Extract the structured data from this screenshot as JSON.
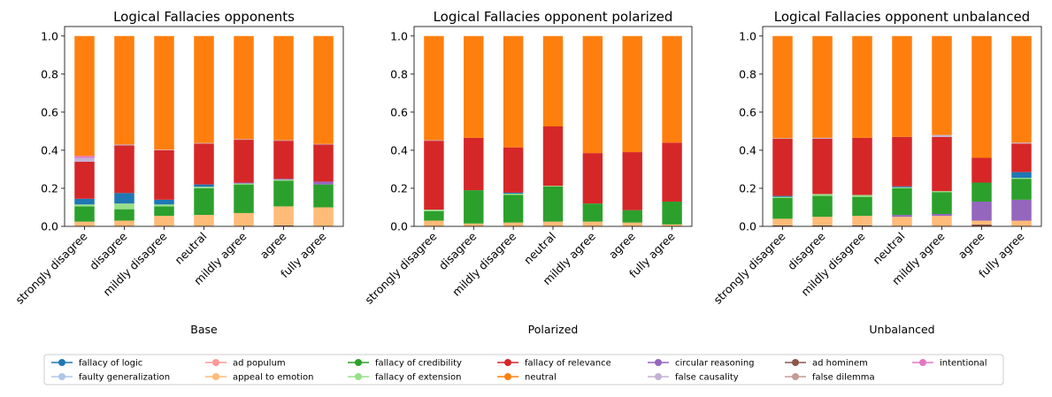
{
  "categories": [
    "strongly disagree",
    "disagree",
    "mildly disagree",
    "neutral",
    "mildly agree",
    "agree",
    "fully agree"
  ],
  "legend": [
    {
      "key": "fallacy_of_logic",
      "label": "fallacy of logic",
      "color": "#1f77b4"
    },
    {
      "key": "faulty_generalization",
      "label": "faulty generalization",
      "color": "#aec7e8"
    },
    {
      "key": "ad_populum",
      "label": "ad populum",
      "color": "#ff9896"
    },
    {
      "key": "appeal_to_emotion",
      "label": "appeal to emotion",
      "color": "#ffbb78"
    },
    {
      "key": "fallacy_of_credibility",
      "label": "fallacy of credibility",
      "color": "#2ca02c"
    },
    {
      "key": "fallacy_of_extension",
      "label": "fallacy of extension",
      "color": "#98df8a"
    },
    {
      "key": "fallacy_of_relevance",
      "label": "fallacy of relevance",
      "color": "#d62728"
    },
    {
      "key": "neutral",
      "label": "neutral",
      "color": "#ff7f0e"
    },
    {
      "key": "circular_reasoning",
      "label": "circular reasoning",
      "color": "#9467bd"
    },
    {
      "key": "false_causality",
      "label": "false causality",
      "color": "#c5b0d5"
    },
    {
      "key": "ad_hominem",
      "label": "ad hominem",
      "color": "#8c564b"
    },
    {
      "key": "false_dilemma",
      "label": "false dilemma",
      "color": "#c49c94"
    },
    {
      "key": "intentional",
      "label": "intentional",
      "color": "#e377c2"
    }
  ],
  "chart_data": [
    {
      "type": "bar",
      "stacked": true,
      "title": "Logical Fallacies opponents",
      "xlabel": "Base",
      "ylabel": "",
      "ylim": [
        0,
        1.05
      ],
      "yticks": [
        "0.0",
        "0.2",
        "0.4",
        "0.6",
        "0.8",
        "1.0"
      ],
      "stack_order": [
        "ad_hominem",
        "appeal_to_emotion",
        "fallacy_of_credibility",
        "fallacy_of_extension",
        "circular_reasoning",
        "fallacy_of_logic",
        "fallacy_of_relevance",
        "false_causality",
        "intentional",
        "neutral"
      ],
      "series": {
        "ad_hominem": [
          0.0,
          0.0,
          0.0,
          0.0,
          0.0,
          0.005,
          0.0
        ],
        "appeal_to_emotion": [
          0.025,
          0.03,
          0.055,
          0.06,
          0.07,
          0.1,
          0.1
        ],
        "fallacy_of_credibility": [
          0.08,
          0.06,
          0.05,
          0.14,
          0.15,
          0.135,
          0.12
        ],
        "fallacy_of_extension": [
          0.01,
          0.03,
          0.01,
          0.008,
          0.005,
          0.005,
          0.0
        ],
        "circular_reasoning": [
          0.0,
          0.0,
          0.0,
          0.0,
          0.005,
          0.005,
          0.015
        ],
        "fallacy_of_logic": [
          0.03,
          0.055,
          0.025,
          0.012,
          0.0,
          0.0,
          0.0
        ],
        "fallacy_of_relevance": [
          0.195,
          0.25,
          0.26,
          0.215,
          0.225,
          0.2,
          0.195
        ],
        "false_causality": [
          0.02,
          0.005,
          0.003,
          0.003,
          0.003,
          0.003,
          0.003
        ],
        "intentional": [
          0.01,
          0.0,
          0.0,
          0.0,
          0.0,
          0.0,
          0.0
        ],
        "neutral": [
          0.63,
          0.57,
          0.597,
          0.562,
          0.542,
          0.547,
          0.567
        ]
      }
    },
    {
      "type": "bar",
      "stacked": true,
      "title": "Logical Fallacies opponent polarized",
      "xlabel": "Polarized",
      "ylabel": "",
      "ylim": [
        0,
        1.05
      ],
      "yticks": [
        "0.0",
        "0.2",
        "0.4",
        "0.6",
        "0.8",
        "1.0"
      ],
      "stack_order": [
        "appeal_to_emotion",
        "fallacy_of_credibility",
        "fallacy_of_extension",
        "fallacy_of_logic",
        "fallacy_of_relevance",
        "false_causality",
        "neutral"
      ],
      "series": {
        "appeal_to_emotion": [
          0.03,
          0.015,
          0.02,
          0.025,
          0.025,
          0.02,
          0.01
        ],
        "fallacy_of_credibility": [
          0.05,
          0.175,
          0.145,
          0.185,
          0.095,
          0.065,
          0.12
        ],
        "fallacy_of_extension": [
          0.008,
          0.0,
          0.007,
          0.003,
          0.0,
          0.0,
          0.0
        ],
        "fallacy_of_logic": [
          0.0,
          0.0,
          0.005,
          0.0,
          0.0,
          0.0,
          0.0
        ],
        "fallacy_of_relevance": [
          0.362,
          0.275,
          0.238,
          0.312,
          0.265,
          0.305,
          0.31
        ],
        "false_causality": [
          0.003,
          0.0,
          0.0,
          0.0,
          0.0,
          0.0,
          0.0
        ],
        "neutral": [
          0.547,
          0.535,
          0.585,
          0.475,
          0.615,
          0.61,
          0.56
        ]
      }
    },
    {
      "type": "bar",
      "stacked": true,
      "title": "Logical Fallacies opponent unbalanced",
      "xlabel": "Unbalanced",
      "ylabel": "",
      "ylim": [
        0,
        1.05
      ],
      "yticks": [
        "0.0",
        "0.2",
        "0.4",
        "0.6",
        "0.8",
        "1.0"
      ],
      "stack_order": [
        "ad_hominem",
        "appeal_to_emotion",
        "circular_reasoning",
        "fallacy_of_credibility",
        "fallacy_of_extension",
        "fallacy_of_logic",
        "fallacy_of_relevance",
        "false_causality",
        "neutral"
      ],
      "series": {
        "ad_hominem": [
          0.005,
          0.005,
          0.005,
          0.0,
          0.0,
          0.01,
          0.0
        ],
        "appeal_to_emotion": [
          0.035,
          0.045,
          0.05,
          0.05,
          0.055,
          0.02,
          0.03
        ],
        "circular_reasoning": [
          0.0,
          0.0,
          0.0,
          0.01,
          0.01,
          0.1,
          0.11
        ],
        "fallacy_of_credibility": [
          0.11,
          0.11,
          0.1,
          0.14,
          0.115,
          0.1,
          0.11
        ],
        "fallacy_of_extension": [
          0.005,
          0.01,
          0.01,
          0.005,
          0.005,
          0.0,
          0.005
        ],
        "fallacy_of_logic": [
          0.005,
          0.0,
          0.0,
          0.005,
          0.0,
          0.0,
          0.03
        ],
        "fallacy_of_relevance": [
          0.3,
          0.29,
          0.3,
          0.26,
          0.285,
          0.13,
          0.15
        ],
        "false_causality": [
          0.003,
          0.005,
          0.0,
          0.0,
          0.01,
          0.0,
          0.005
        ],
        "neutral": [
          0.537,
          0.535,
          0.535,
          0.53,
          0.52,
          0.64,
          0.56
        ]
      }
    }
  ]
}
